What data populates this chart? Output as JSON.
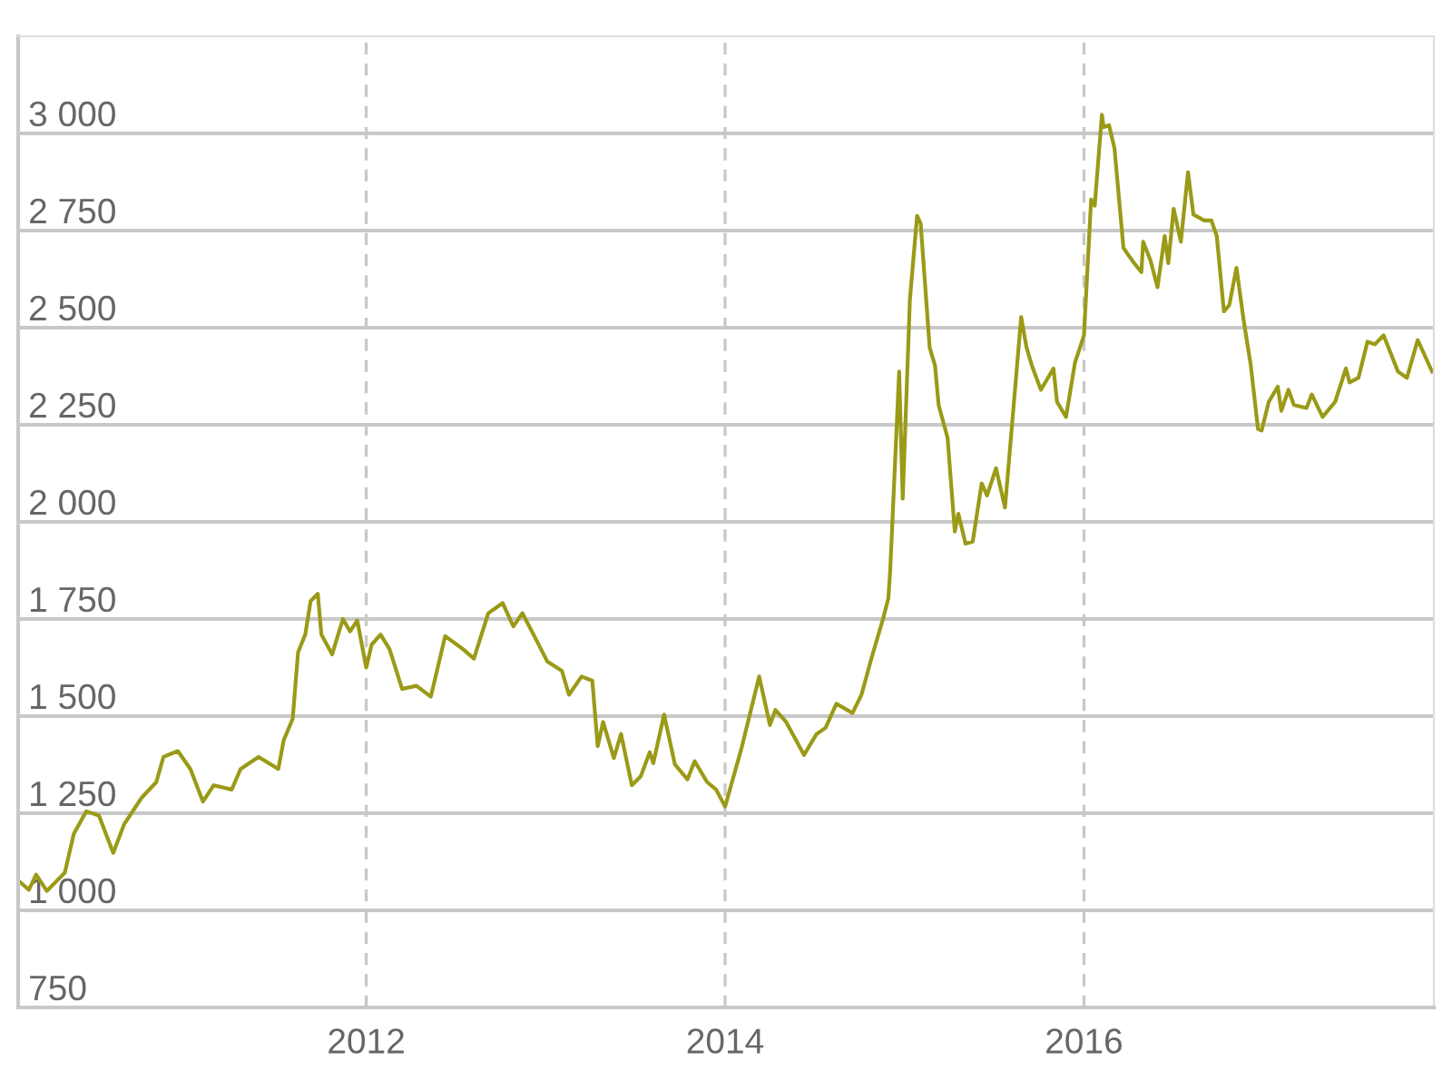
{
  "chart_data": {
    "type": "line",
    "x": [
      2010.07,
      2010.12,
      2010.16,
      2010.22,
      2010.32,
      2010.37,
      2010.44,
      2010.51,
      2010.59,
      2010.65,
      2010.75,
      2010.83,
      2010.87,
      2010.95,
      2011.02,
      2011.09,
      2011.15,
      2011.25,
      2011.3,
      2011.4,
      2011.51,
      2011.54,
      2011.59,
      2011.62,
      2011.66,
      2011.69,
      2011.73,
      2011.75,
      2011.81,
      2011.87,
      2011.91,
      2011.95,
      2012.0,
      2012.03,
      2012.08,
      2012.13,
      2012.2,
      2012.28,
      2012.36,
      2012.44,
      2012.54,
      2012.6,
      2012.68,
      2012.76,
      2012.82,
      2012.87,
      2012.94,
      2013.01,
      2013.09,
      2013.13,
      2013.2,
      2013.26,
      2013.29,
      2013.32,
      2013.38,
      2013.42,
      2013.48,
      2013.53,
      2013.58,
      2013.6,
      2013.66,
      2013.72,
      2013.79,
      2013.83,
      2013.9,
      2013.95,
      2014.0,
      2014.09,
      2014.19,
      2014.25,
      2014.28,
      2014.34,
      2014.44,
      2014.51,
      2014.56,
      2014.62,
      2014.71,
      2014.76,
      2014.82,
      2014.88,
      2014.91,
      2014.92,
      2014.97,
      2014.99,
      2015.03,
      2015.07,
      2015.09,
      2015.14,
      2015.17,
      2015.19,
      2015.24,
      2015.28,
      2015.3,
      2015.34,
      2015.38,
      2015.43,
      2015.46,
      2015.51,
      2015.56,
      2015.65,
      2015.68,
      2015.71,
      2015.76,
      2015.83,
      2015.85,
      2015.9,
      2015.95,
      2016.0,
      2016.04,
      2016.06,
      2016.1,
      2016.11,
      2016.14,
      2016.17,
      2016.22,
      2016.25,
      2016.28,
      2016.32,
      2016.33,
      2016.37,
      2016.41,
      2016.45,
      2016.47,
      2016.5,
      2016.54,
      2016.58,
      2016.61,
      2016.67,
      2016.71,
      2016.74,
      2016.78,
      2016.81,
      2016.85,
      2016.89,
      2016.93,
      2016.97,
      2016.99,
      2017.03,
      2017.08,
      2017.1,
      2017.14,
      2017.17,
      2017.24,
      2017.27,
      2017.33,
      2017.4,
      2017.46,
      2017.48,
      2017.53,
      2017.58,
      2017.62,
      2017.67,
      2017.75,
      2017.8,
      2017.86,
      2017.94
    ],
    "series": [
      {
        "color": "#9a9a17",
        "values": [
          1073,
          1053,
          1092,
          1050,
          1097,
          1197,
          1255,
          1244,
          1148,
          1221,
          1291,
          1330,
          1395,
          1410,
          1364,
          1280,
          1322,
          1311,
          1364,
          1395,
          1364,
          1438,
          1493,
          1664,
          1710,
          1796,
          1815,
          1710,
          1659,
          1750,
          1718,
          1746,
          1625,
          1684,
          1710,
          1672,
          1570,
          1578,
          1550,
          1706,
          1672,
          1648,
          1765,
          1791,
          1731,
          1765,
          1703,
          1640,
          1617,
          1555,
          1602,
          1591,
          1423,
          1485,
          1392,
          1454,
          1322,
          1345,
          1407,
          1379,
          1504,
          1376,
          1337,
          1384,
          1330,
          1311,
          1267,
          1415,
          1602,
          1477,
          1516,
          1485,
          1400,
          1454,
          1470,
          1532,
          1508,
          1555,
          1656,
          1750,
          1804,
          1874,
          2387,
          2060,
          2573,
          2788,
          2768,
          2449,
          2402,
          2301,
          2216,
          1975,
          2021,
          1944,
          1949,
          2099,
          2068,
          2138,
          2037,
          2527,
          2449,
          2402,
          2340,
          2395,
          2309,
          2270,
          2410,
          2480,
          2830,
          2814,
          3048,
          3016,
          3021,
          2962,
          2706,
          2685,
          2666,
          2643,
          2721,
          2674,
          2604,
          2736,
          2666,
          2806,
          2721,
          2900,
          2791,
          2776,
          2776,
          2736,
          2542,
          2558,
          2654,
          2519,
          2402,
          2239,
          2235,
          2309,
          2348,
          2286,
          2340,
          2301,
          2293,
          2328,
          2270,
          2309,
          2395,
          2359,
          2371,
          2464,
          2457,
          2480,
          2387,
          2371,
          2468,
          2387
        ]
      }
    ],
    "xlim": [
      2010.06,
      2017.95
    ],
    "xticks": [
      2012,
      2014,
      2016
    ],
    "ylim": [
      750,
      3250
    ],
    "yticks": [
      750,
      {
        "value": 1000,
        "label": "1 000"
      },
      {
        "value": 1250,
        "label": "1 250"
      },
      {
        "value": 1500,
        "label": "1 500"
      },
      {
        "value": 1750,
        "label": "1 750"
      },
      {
        "value": 2000,
        "label": "2 000"
      },
      {
        "value": 2250,
        "label": "2 250"
      },
      {
        "value": 2500,
        "label": "2 500"
      },
      {
        "value": 2750,
        "label": "2 750"
      },
      {
        "value": 3000,
        "label": "3 000"
      }
    ],
    "grid": true,
    "legend": false,
    "marker": "none",
    "line_style": "solid"
  }
}
